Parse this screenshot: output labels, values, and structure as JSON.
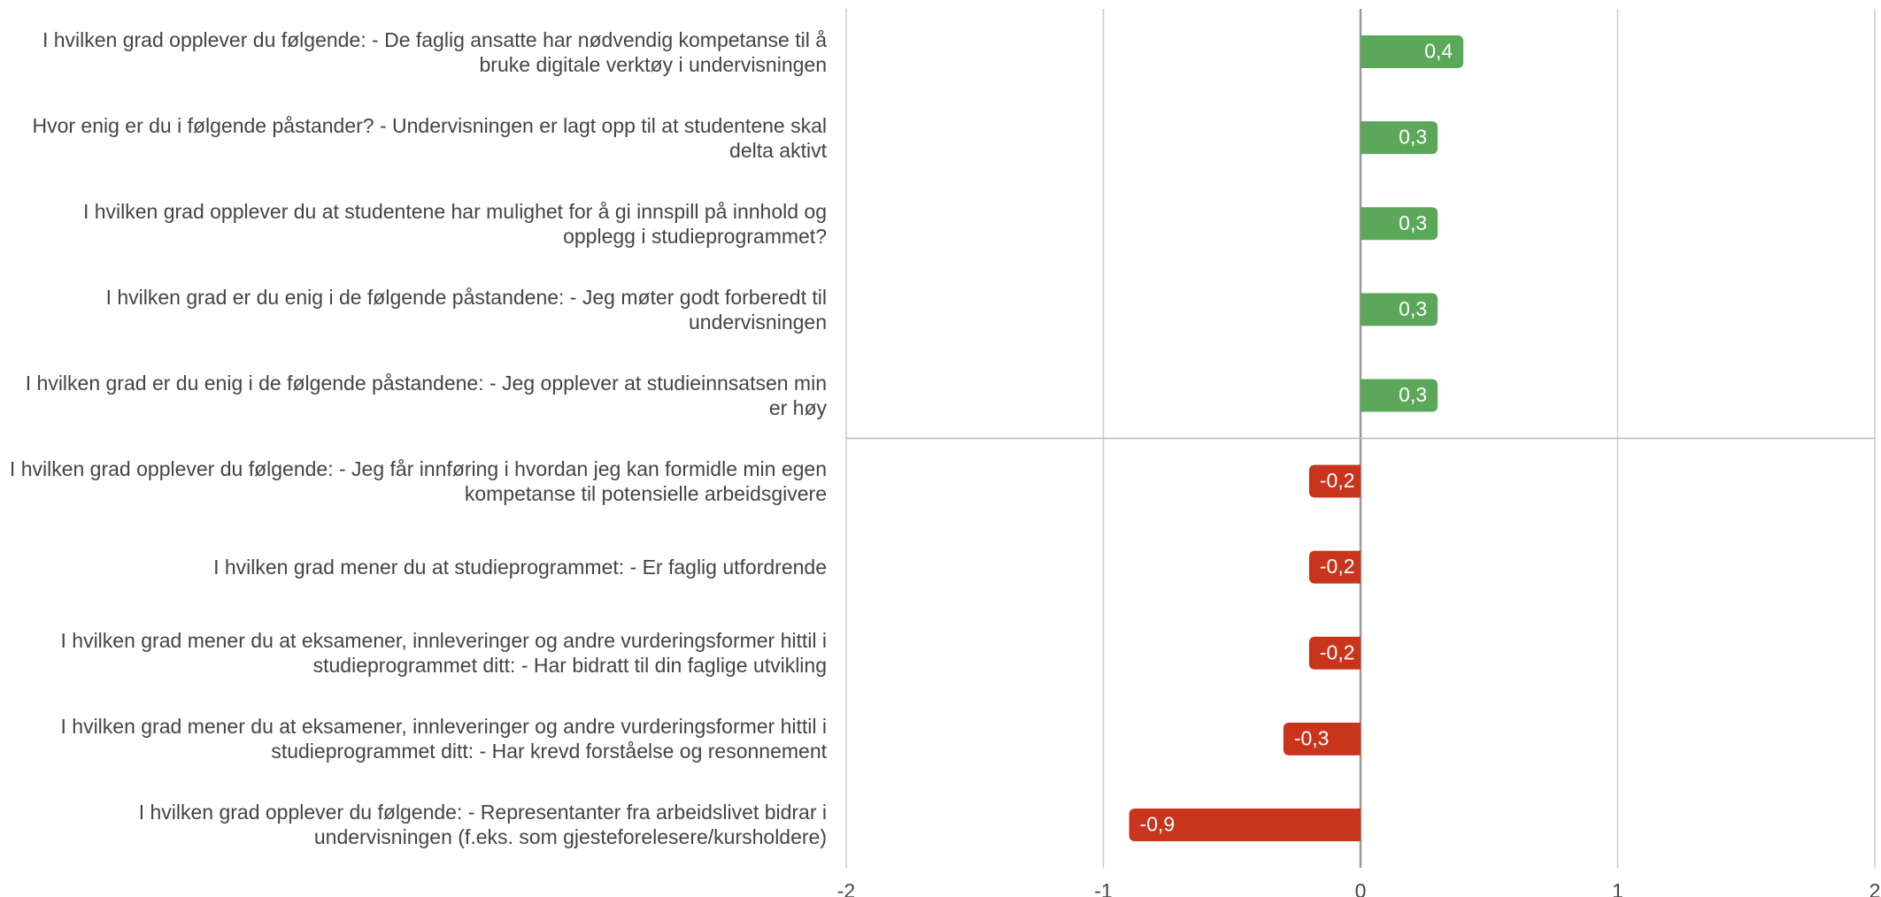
{
  "chart_data": {
    "type": "bar",
    "orientation": "horizontal",
    "categories": [
      "I hvilken grad opplever du følgende: - De faglig ansatte har nødvendig kompetanse til å bruke digitale verktøy i undervisningen",
      "Hvor enig er du i følgende påstander? - Undervisningen er lagt opp til at studentene skal delta aktivt",
      "I hvilken grad opplever du at studentene har mulighet for å gi innspill på innhold og opplegg i studieprogrammet?",
      "I hvilken grad er du enig i de følgende påstandene: - Jeg møter godt forberedt til undervisningen",
      "I hvilken grad er du enig i de følgende påstandene: - Jeg opplever at studieinnsatsen min er høy",
      "I hvilken grad opplever du følgende: - Jeg får innføring i hvordan jeg kan formidle min egen kompetanse til potensielle arbeidsgivere",
      "I hvilken grad mener du at studieprogrammet: - Er faglig utfordrende",
      "I hvilken grad mener du at eksamener, innleveringer og andre vurderingsformer hittil i studieprogrammet ditt: - Har bidratt til din faglige utvikling",
      "I hvilken grad mener du at eksamener, innleveringer og andre vurderingsformer hittil i studieprogrammet ditt: - Har krevd forståelse og resonnement",
      "I hvilken grad opplever du følgende: - Representanter fra arbeidslivet bidrar i undervisningen (f.eks. som gjesteforelesere/kursholdere)"
    ],
    "values": [
      0.4,
      0.3,
      0.3,
      0.3,
      0.3,
      -0.2,
      -0.2,
      -0.2,
      -0.3,
      -0.9
    ],
    "value_labels": [
      "0,4",
      "0,3",
      "0,3",
      "0,3",
      "0,3",
      "-0,2",
      "-0,2",
      "-0,2",
      "-0,3",
      "-0,9"
    ],
    "positive_color": "#5ba85a",
    "negative_color": "#c8341c",
    "xlim": [
      -2,
      2
    ],
    "xticks": [
      -2,
      -1,
      0,
      1,
      2
    ],
    "grid": true
  }
}
